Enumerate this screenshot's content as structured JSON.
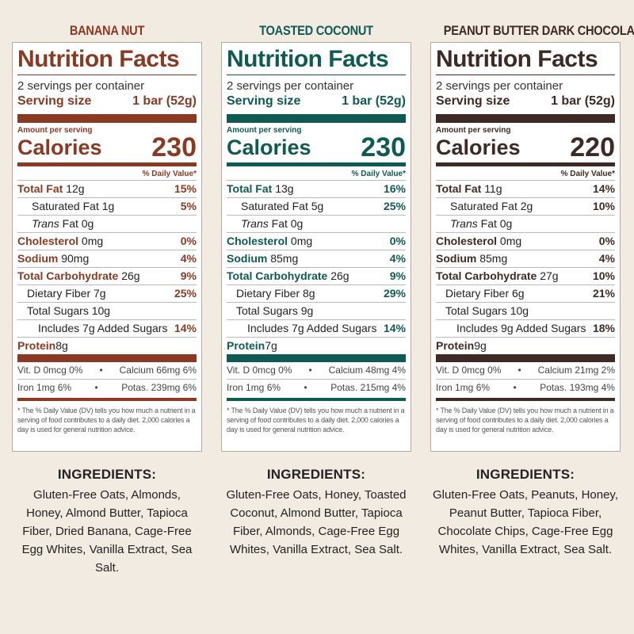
{
  "labels": [
    {
      "flavor": "BANANA NUT",
      "color": "#8a3a22",
      "title": "Nutrition Facts",
      "servings": "2 servings per container",
      "serving_label": "Serving size",
      "serving_value": "1 bar (52g)",
      "amount_per": "Amount per serving",
      "calories_label": "Calories",
      "calories": "230",
      "dv_header": "% Daily Value*",
      "total_fat": {
        "label": "Total Fat",
        "amt": "12g",
        "pct": "15%"
      },
      "sat_fat": {
        "label": "Saturated Fat 1g",
        "pct": "5%"
      },
      "trans_fat": {
        "label_italic": "Trans",
        "label": "Fat 0g"
      },
      "cholesterol": {
        "label": "Cholesterol",
        "amt": "0mg",
        "pct": "0%"
      },
      "sodium": {
        "label": "Sodium",
        "amt": "90mg",
        "pct": "4%"
      },
      "carb": {
        "label": "Total Carbohydrate",
        "amt": "26g",
        "pct": "9%"
      },
      "fiber": {
        "label": "Dietary Fiber 7g",
        "pct": "25%"
      },
      "sugars": {
        "label": "Total Sugars 10g"
      },
      "added": {
        "label": "Includes 7g Added Sugars",
        "pct": "14%"
      },
      "protein": {
        "label": "Protein",
        "amt": "8g"
      },
      "vit_row1": {
        "left": "Vit. D 0mcg 0%",
        "bullet": "•",
        "right": "Calcium 66mg 6%"
      },
      "vit_row2": {
        "left": "Iron 1mg 6%",
        "bullet": "•",
        "right": "Potas. 239mg 6%"
      },
      "footnote": "* The % Daily Value (DV) tells you how much a nutrient in a serving of food contributes to a daily diet. 2,000 calories a day is used for general nutrition advice.",
      "ingredients_title": "INGREDIENTS:",
      "ingredients": "Gluten-Free Oats, Almonds, Honey, Almond Butter, Tapioca Fiber, Dried Banana, Cage-Free Egg Whites, Vanilla Extract, Sea Salt."
    },
    {
      "flavor": "TOASTED COCONUT",
      "color": "#0f5a52",
      "title": "Nutrition Facts",
      "servings": "2 servings per container",
      "serving_label": "Serving size",
      "serving_value": "1 bar (52g)",
      "amount_per": "Amount per serving",
      "calories_label": "Calories",
      "calories": "230",
      "dv_header": "% Daily Value*",
      "total_fat": {
        "label": "Total Fat",
        "amt": "13g",
        "pct": "16%"
      },
      "sat_fat": {
        "label": "Saturated Fat 5g",
        "pct": "25%"
      },
      "trans_fat": {
        "label_italic": "Trans",
        "label": "Fat 0g"
      },
      "cholesterol": {
        "label": "Cholesterol",
        "amt": "0mg",
        "pct": "0%"
      },
      "sodium": {
        "label": "Sodium",
        "amt": "85mg",
        "pct": "4%"
      },
      "carb": {
        "label": "Total Carbohydrate",
        "amt": "26g",
        "pct": "9%"
      },
      "fiber": {
        "label": "Dietary Fiber 8g",
        "pct": "29%"
      },
      "sugars": {
        "label": "Total Sugars 9g"
      },
      "added": {
        "label": "Includes 7g Added Sugars",
        "pct": "14%"
      },
      "protein": {
        "label": "Protein",
        "amt": "7g"
      },
      "vit_row1": {
        "left": "Vit. D 0mcg 0%",
        "bullet": "•",
        "right": "Calcium 48mg 4%"
      },
      "vit_row2": {
        "left": "Iron 1mg 6%",
        "bullet": "•",
        "right": "Potas. 215mg 4%"
      },
      "footnote": "* The % Daily Value (DV) tells you how much a nutrient in a serving of food contributes to a daily diet. 2,000 calories a day is used for general nutrition advice.",
      "ingredients_title": "INGREDIENTS:",
      "ingredients": "Gluten-Free Oats, Honey, Toasted Coconut, Almond Butter, Tapioca Fiber, Almonds, Cage-Free Egg Whites, Vanilla Extract, Sea Salt."
    },
    {
      "flavor": "PEANUT BUTTER DARK CHOCOLATE",
      "color": "#3d2a24",
      "title": "Nutrition Facts",
      "servings": "2 servings per container",
      "serving_label": "Serving size",
      "serving_value": "1 bar (52g)",
      "amount_per": "Amount per serving",
      "calories_label": "Calories",
      "calories": "220",
      "dv_header": "% Daily Value*",
      "total_fat": {
        "label": "Total Fat",
        "amt": "11g",
        "pct": "14%"
      },
      "sat_fat": {
        "label": "Saturated Fat 2g",
        "pct": "10%"
      },
      "trans_fat": {
        "label_italic": "Trans",
        "label": "Fat 0g"
      },
      "cholesterol": {
        "label": "Cholesterol",
        "amt": "0mg",
        "pct": "0%"
      },
      "sodium": {
        "label": "Sodium",
        "amt": "85mg",
        "pct": "4%"
      },
      "carb": {
        "label": "Total Carbohydrate",
        "amt": "27g",
        "pct": "10%"
      },
      "fiber": {
        "label": "Dietary Fiber 6g",
        "pct": "21%"
      },
      "sugars": {
        "label": "Total Sugars 10g"
      },
      "added": {
        "label": "Includes 9g Added Sugars",
        "pct": "18%"
      },
      "protein": {
        "label": "Protein",
        "amt": "9g"
      },
      "vit_row1": {
        "left": "Vit. D 0mcg 0%",
        "bullet": "•",
        "right": "Calcium 21mg 2%"
      },
      "vit_row2": {
        "left": "Iron 1mg 6%",
        "bullet": "•",
        "right": "Potas. 193mg 4%"
      },
      "footnote": "* The % Daily Value (DV) tells you how much a nutrient in a serving of food contributes to a daily diet. 2,000 calories a day is used for general nutrition advice.",
      "ingredients_title": "INGREDIENTS:",
      "ingredients": "Gluten-Free Oats, Peanuts, Honey, Peanut Butter, Tapioca Fiber, Chocolate Chips, Cage-Free Egg Whites, Vanilla Extract, Sea Salt."
    }
  ]
}
